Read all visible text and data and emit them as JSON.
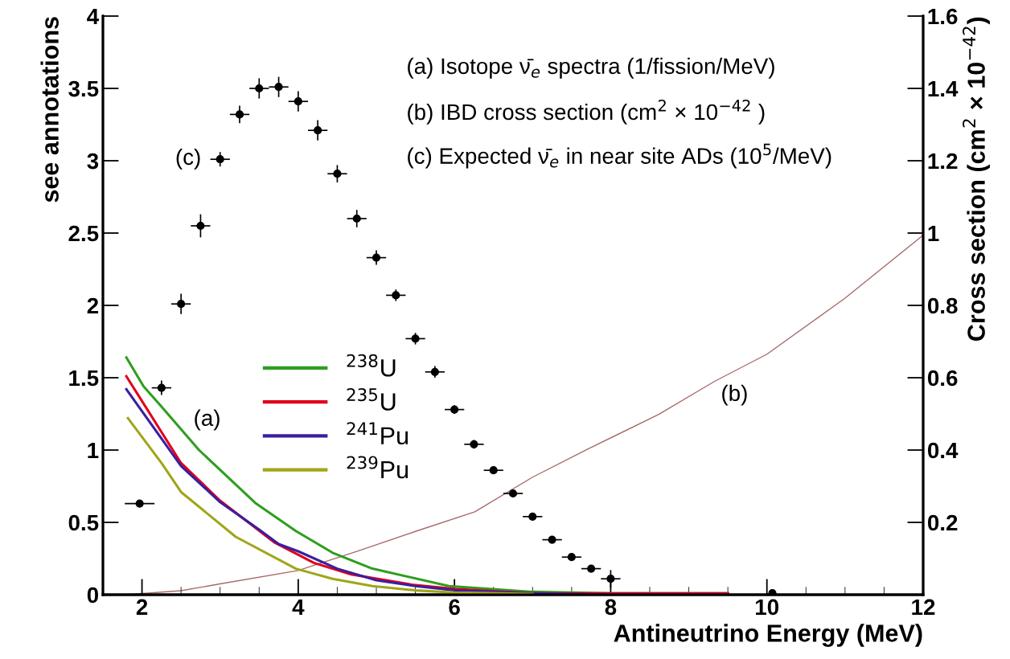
{
  "chart_data": {
    "type": "line",
    "xlabel": "Antineutrino Energy (MeV)",
    "ylabel": "see annotations",
    "y2label": "Cross section (cm$^{2}$ × 10$^{−42}$)",
    "xlim": [
      1.5,
      12
    ],
    "xticks": [
      2,
      4,
      6,
      8,
      10,
      12
    ],
    "ylim": [
      0,
      4
    ],
    "yticks": [
      0,
      0.5,
      1,
      1.5,
      2,
      2.5,
      3,
      3.5,
      4
    ],
    "y2lim": [
      0,
      1.6
    ],
    "y2ticks": [
      0.2,
      0.4,
      0.6,
      0.8,
      1,
      1.2,
      1.4,
      1.6
    ],
    "legend": "left",
    "grid": false,
    "series": [
      {
        "name": "$^{238}$U",
        "color": "#2e9e1e",
        "x": [
          1.8,
          2.02,
          2.25,
          2.73,
          3.46,
          3.97,
          4.44,
          4.95,
          5.93,
          7,
          8,
          9.5
        ],
        "values": [
          1.64,
          1.44,
          1.3,
          1.0,
          0.63,
          0.44,
          0.29,
          0.18,
          0.06,
          0.02,
          0.01,
          0.01
        ]
      },
      {
        "name": "$^{235}$U",
        "color": "#e0001a",
        "x": [
          1.8,
          2.5,
          3.0,
          3.7,
          4.2,
          4.68,
          5.45,
          6,
          7,
          8,
          9.5
        ],
        "values": [
          1.51,
          0.91,
          0.65,
          0.36,
          0.22,
          0.14,
          0.07,
          0.04,
          0.01,
          0.01,
          0.01
        ]
      },
      {
        "name": "$^{241}$Pu",
        "color": "#3a1fa0",
        "x": [
          1.8,
          2.5,
          3.0,
          3.5,
          3.75,
          4.0,
          4.5,
          5.0,
          5.5,
          6,
          7,
          8,
          9.5
        ],
        "values": [
          1.42,
          0.89,
          0.64,
          0.45,
          0.35,
          0.3,
          0.18,
          0.1,
          0.06,
          0.03,
          0.01,
          0.0,
          0.0
        ]
      },
      {
        "name": "$^{239}$Pu",
        "color": "#a0a619",
        "x": [
          1.82,
          2.25,
          2.5,
          3.2,
          3.97,
          4.44,
          4.95,
          5.5,
          6,
          7
        ],
        "values": [
          1.22,
          0.91,
          0.71,
          0.4,
          0.18,
          0.11,
          0.06,
          0.03,
          0.015,
          0.005
        ]
      },
      {
        "axis": "y2",
        "color": "#a86a6a",
        "x": [
          1.8,
          2.5,
          3,
          4,
          4.78,
          5.5,
          6.26,
          7,
          7.71,
          8.61,
          9.33,
          10,
          11,
          12
        ],
        "values": [
          0,
          0.011,
          0.03,
          0.067,
          0.122,
          0.175,
          0.229,
          0.325,
          0.403,
          0.498,
          0.59,
          0.665,
          0.82,
          0.994
        ]
      },
      {
        "type": "scatter",
        "color": "#000000",
        "marker": "circle",
        "x": [
          1.97,
          2.25,
          2.5,
          2.75,
          3.0,
          3.25,
          3.5,
          3.75,
          4.0,
          4.25,
          4.5,
          4.75,
          5.0,
          5.25,
          5.5,
          5.75,
          6.0,
          6.25,
          6.5,
          6.75,
          7.0,
          7.25,
          7.5,
          7.75,
          8.0,
          10.07
        ],
        "values": [
          0.63,
          1.43,
          2.01,
          2.55,
          3.01,
          3.32,
          3.5,
          3.51,
          3.41,
          3.21,
          2.91,
          2.6,
          2.33,
          2.07,
          1.77,
          1.54,
          1.28,
          1.04,
          0.86,
          0.7,
          0.54,
          0.38,
          0.26,
          0.18,
          0.11,
          0.01
        ],
        "errors": [
          0.02,
          0.05,
          0.07,
          0.08,
          0.05,
          0.06,
          0.07,
          0.07,
          0.07,
          0.07,
          0.06,
          0.06,
          0.05,
          0.04,
          0.04,
          0.04,
          0.03,
          0.03,
          0.02,
          0.02,
          0.02,
          0.02,
          0.02,
          0.02,
          0.06,
          null
        ],
        "xerrors": [
          0.19,
          0.125,
          0.125,
          0.125,
          0.125,
          0.125,
          0.125,
          0.125,
          0.125,
          0.125,
          0.125,
          0.125,
          0.125,
          0.125,
          0.125,
          0.125,
          0.125,
          0.125,
          0.125,
          0.125,
          0.125,
          0.125,
          0.125,
          0.125,
          0.125,
          null
        ]
      }
    ],
    "annotations": [
      "(a) Isotope ν̄$_{e}$ spectra (1/fission/MeV)",
      "(b) IBD cross section (cm$^{2}$ × 10$^{−42}$ )",
      "(c) Expected ν̄$_{e}$ in near site ADs (10$^{5}$/MeV)",
      "(a)",
      "(b)",
      "(c)"
    ]
  }
}
